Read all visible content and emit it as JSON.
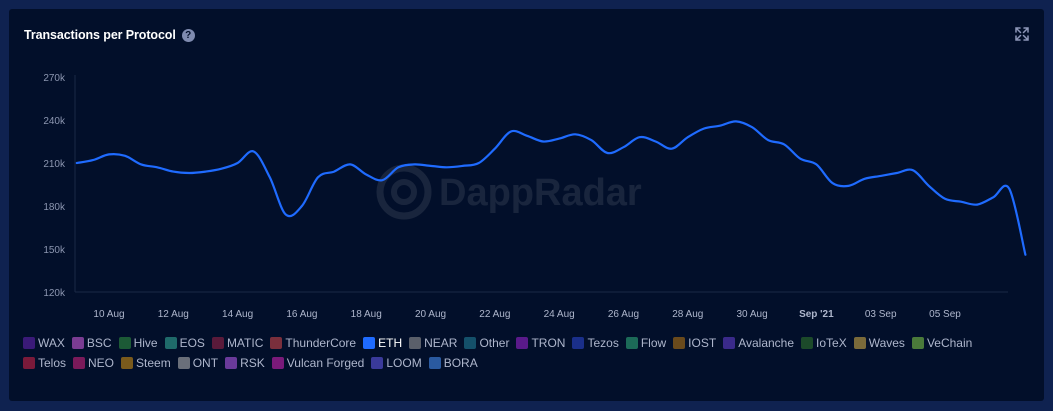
{
  "card": {
    "title": "Transactions per Protocol",
    "help_icon": "question-circle-icon",
    "expand_icon": "expand-arrows-icon"
  },
  "watermark": {
    "text": "DappRadar",
    "icon": "dappradar-logo-icon"
  },
  "chart_data": {
    "type": "line",
    "title": "Transactions per Protocol",
    "xlabel": "",
    "ylabel": "",
    "ylim": [
      120000,
      270000
    ],
    "y_ticks": [
      120000,
      150000,
      180000,
      210000,
      240000,
      270000
    ],
    "y_tick_labels": [
      "120k",
      "150k",
      "180k",
      "210k",
      "240k",
      "270k"
    ],
    "x_tick_labels": [
      "10 Aug",
      "12 Aug",
      "14 Aug",
      "16 Aug",
      "18 Aug",
      "20 Aug",
      "22 Aug",
      "24 Aug",
      "26 Aug",
      "28 Aug",
      "30 Aug",
      "Sep '21",
      "03 Sep",
      "05 Sep"
    ],
    "x_tick_dates": [
      "2021-08-10",
      "2021-08-12",
      "2021-08-14",
      "2021-08-16",
      "2021-08-18",
      "2021-08-20",
      "2021-08-22",
      "2021-08-24",
      "2021-08-26",
      "2021-08-28",
      "2021-08-30",
      "2021-09-01",
      "2021-09-03",
      "2021-09-05"
    ],
    "grid": false,
    "legend_position": "bottom",
    "series": [
      {
        "name": "ETH",
        "color": "#1f6bff",
        "x": [
          "2021-08-09T00",
          "2021-08-09T12",
          "2021-08-10T00",
          "2021-08-10T12",
          "2021-08-11T00",
          "2021-08-11T12",
          "2021-08-12T00",
          "2021-08-12T12",
          "2021-08-13T00",
          "2021-08-13T12",
          "2021-08-14T00",
          "2021-08-14T12",
          "2021-08-15T00",
          "2021-08-15T12",
          "2021-08-16T00",
          "2021-08-16T12",
          "2021-08-17T00",
          "2021-08-17T12",
          "2021-08-18T00",
          "2021-08-18T12",
          "2021-08-19T00",
          "2021-08-19T12",
          "2021-08-20T00",
          "2021-08-20T12",
          "2021-08-21T00",
          "2021-08-21T12",
          "2021-08-22T00",
          "2021-08-22T12",
          "2021-08-23T00",
          "2021-08-23T12",
          "2021-08-24T00",
          "2021-08-24T12",
          "2021-08-25T00",
          "2021-08-25T12",
          "2021-08-26T00",
          "2021-08-26T12",
          "2021-08-27T00",
          "2021-08-27T12",
          "2021-08-28T00",
          "2021-08-28T12",
          "2021-08-29T00",
          "2021-08-29T12",
          "2021-08-30T00",
          "2021-08-30T12",
          "2021-08-31T00",
          "2021-08-31T12",
          "2021-09-01T00",
          "2021-09-01T12",
          "2021-09-02T00",
          "2021-09-02T12",
          "2021-09-03T00",
          "2021-09-03T12",
          "2021-09-04T00",
          "2021-09-04T12",
          "2021-09-05T00",
          "2021-09-05T12",
          "2021-09-06T00",
          "2021-09-06T12",
          "2021-09-07T00"
        ],
        "values": [
          210000,
          212000,
          216000,
          215000,
          209000,
          207000,
          204000,
          203000,
          204000,
          206000,
          210000,
          218000,
          200000,
          174000,
          180000,
          200000,
          204000,
          209000,
          202000,
          198000,
          207000,
          209000,
          208000,
          207000,
          208000,
          210000,
          220000,
          232000,
          229000,
          225000,
          227000,
          230000,
          226000,
          217000,
          221000,
          228000,
          225000,
          220000,
          228000,
          234000,
          236000,
          239000,
          235000,
          226000,
          223000,
          213000,
          209000,
          196000,
          194000,
          199000,
          201000,
          203000,
          205000,
          194000,
          185000,
          183000,
          181000,
          186000,
          192000
        ]
      }
    ],
    "final_point": {
      "x": "2021-09-07T12",
      "value": 146000
    }
  },
  "legend": [
    {
      "label": "WAX",
      "color": "#3a1a78",
      "active": false
    },
    {
      "label": "BSC",
      "color": "#7a3c92",
      "active": false
    },
    {
      "label": "Hive",
      "color": "#1c5a36",
      "active": false
    },
    {
      "label": "EOS",
      "color": "#1f6a6a",
      "active": false
    },
    {
      "label": "MATIC",
      "color": "#5a1a3a",
      "active": false
    },
    {
      "label": "ThunderCore",
      "color": "#7a2f3c",
      "active": false
    },
    {
      "label": "ETH",
      "color": "#1f6bff",
      "active": true
    },
    {
      "label": "NEAR",
      "color": "#5a5f6a",
      "active": false
    },
    {
      "label": "Other",
      "color": "#14506a",
      "active": false
    },
    {
      "label": "TRON",
      "color": "#5a1a8a",
      "active": false
    },
    {
      "label": "Tezos",
      "color": "#1a2f8a",
      "active": false
    },
    {
      "label": "Flow",
      "color": "#1c6a58",
      "active": false
    },
    {
      "label": "IOST",
      "color": "#6a4a1c",
      "active": false
    },
    {
      "label": "Avalanche",
      "color": "#3a2a8a",
      "active": false
    },
    {
      "label": "IoTeX",
      "color": "#1c4a2a",
      "active": false
    },
    {
      "label": "Waves",
      "color": "#7a6a3a",
      "active": false
    },
    {
      "label": "VeChain",
      "color": "#4a7a3a",
      "active": false
    },
    {
      "label": "Telos",
      "color": "#7a1a3a",
      "active": false
    },
    {
      "label": "NEO",
      "color": "#7a1a5a",
      "active": false
    },
    {
      "label": "Steem",
      "color": "#7a5a1c",
      "active": false
    },
    {
      "label": "ONT",
      "color": "#6a6f7a",
      "active": false
    },
    {
      "label": "RSK",
      "color": "#6a3a9a",
      "active": false
    },
    {
      "label": "Vulcan Forged",
      "color": "#7a1a7a",
      "active": false
    },
    {
      "label": "LOOM",
      "color": "#3a3a9a",
      "active": false
    },
    {
      "label": "BORA",
      "color": "#2a5aa0",
      "active": false
    }
  ]
}
